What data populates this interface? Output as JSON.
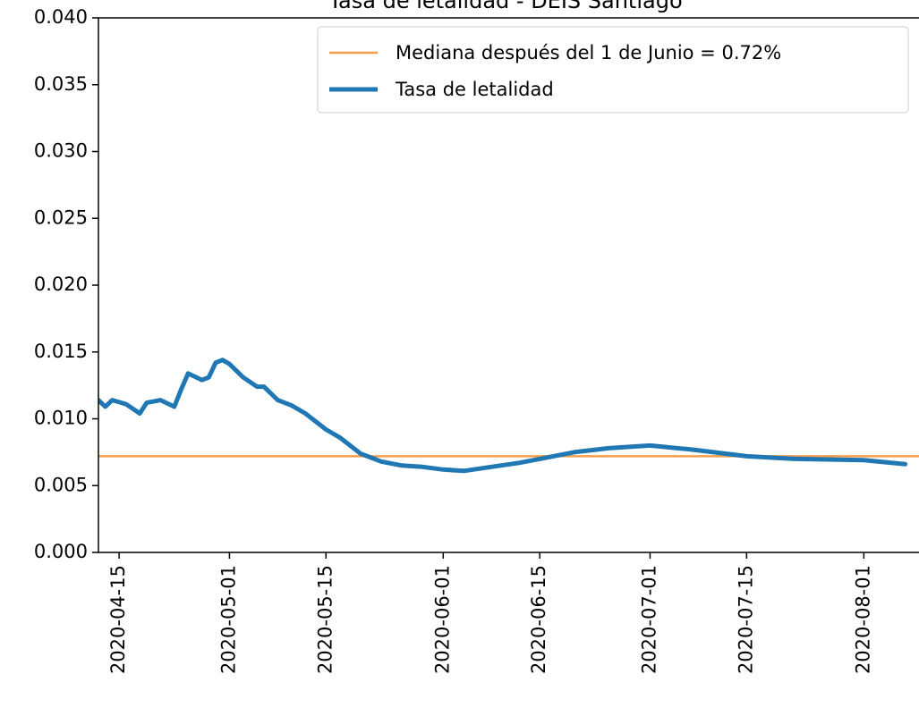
{
  "chart_data": {
    "type": "line",
    "title": "Tasa de letalidad - DEIS Santiago",
    "x": [
      "2020-04-12",
      "2020-04-13",
      "2020-04-14",
      "2020-04-16",
      "2020-04-18",
      "2020-04-19",
      "2020-04-21",
      "2020-04-23",
      "2020-04-24",
      "2020-04-25",
      "2020-04-27",
      "2020-04-28",
      "2020-04-29",
      "2020-04-30",
      "2020-05-01",
      "2020-05-03",
      "2020-05-05",
      "2020-05-06",
      "2020-05-08",
      "2020-05-10",
      "2020-05-12",
      "2020-05-15",
      "2020-05-17",
      "2020-05-20",
      "2020-05-23",
      "2020-05-26",
      "2020-05-29",
      "2020-06-01",
      "2020-06-04",
      "2020-06-08",
      "2020-06-12",
      "2020-06-15",
      "2020-06-20",
      "2020-06-25",
      "2020-07-01",
      "2020-07-07",
      "2020-07-15",
      "2020-07-22",
      "2020-08-01",
      "2020-08-07"
    ],
    "series": [
      {
        "name": "Tasa de letalidad",
        "color": "#1f77b4",
        "values": [
          0.0114,
          0.0109,
          0.0114,
          0.0111,
          0.0104,
          0.0112,
          0.0114,
          0.0109,
          0.0122,
          0.0134,
          0.0129,
          0.0131,
          0.0142,
          0.0144,
          0.0141,
          0.0131,
          0.0124,
          0.0124,
          0.0114,
          0.011,
          0.0104,
          0.0092,
          0.0086,
          0.0074,
          0.0068,
          0.0065,
          0.0064,
          0.0062,
          0.0061,
          0.0064,
          0.0067,
          0.007,
          0.0075,
          0.0078,
          0.008,
          0.0077,
          0.0072,
          0.007,
          0.0069,
          0.0066
        ]
      }
    ],
    "hline": {
      "name": "Mediana después del 1 de Junio = 0.72%",
      "value": 0.0072,
      "color": "#f29e4c"
    },
    "xlim": [
      "2020-04-12",
      "2020-08-09"
    ],
    "xticks": [
      "2020-04-15",
      "2020-05-01",
      "2020-05-15",
      "2020-06-01",
      "2020-06-15",
      "2020-07-01",
      "2020-07-15",
      "2020-08-01"
    ],
    "ylim": [
      0,
      0.04
    ],
    "yticks": [
      {
        "value": 0,
        "label": "0.000"
      },
      0.005,
      {
        "value": 0.01,
        "label": "0.010"
      },
      0.015,
      {
        "value": 0.02,
        "label": "0.020"
      },
      0.025,
      {
        "value": 0.03,
        "label": "0.030"
      },
      0.035,
      {
        "value": 0.04,
        "label": "0.040"
      }
    ],
    "legend": "upper right"
  }
}
